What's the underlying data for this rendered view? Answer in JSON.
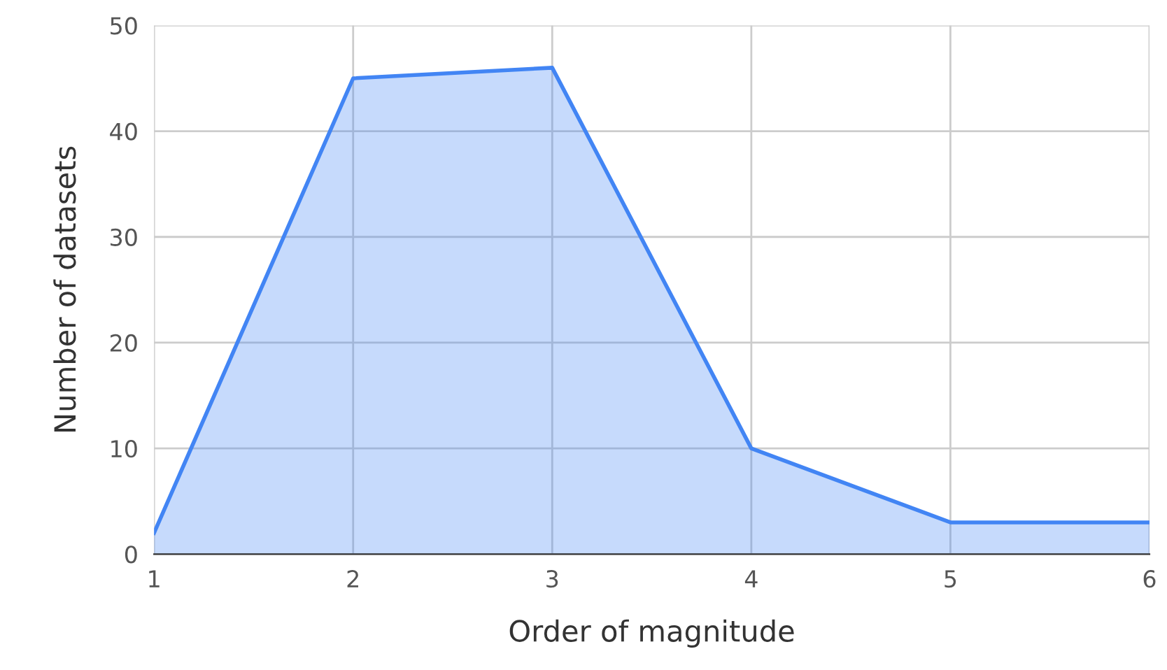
{
  "chart_data": {
    "type": "area",
    "xlabel": "Order of magnitude",
    "ylabel": "Number of datasets",
    "x": [
      1,
      2,
      3,
      4,
      5,
      6
    ],
    "series": [
      {
        "color": "#4285f4",
        "values": [
          2,
          45,
          46,
          10,
          3,
          3
        ]
      }
    ],
    "xlim": [
      1,
      6
    ],
    "xticks": [
      1,
      2,
      3,
      4,
      5,
      6
    ],
    "ylim": [
      0,
      50
    ],
    "yticks": [
      0,
      10,
      20,
      30,
      40,
      50
    ],
    "grid": true,
    "legend": false,
    "marker": "none",
    "line_style": "solid"
  }
}
